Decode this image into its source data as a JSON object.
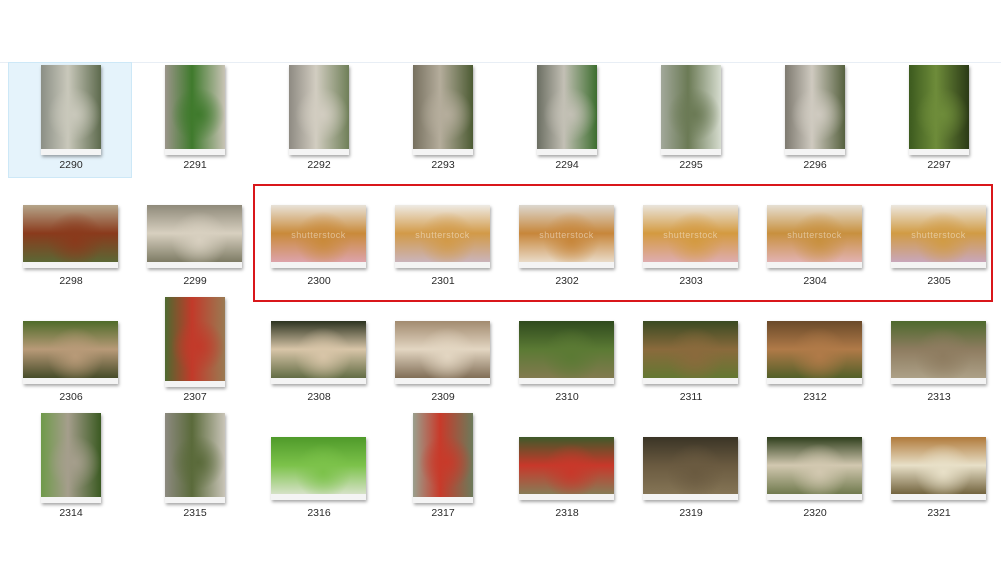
{
  "window": {
    "selected_item": "2290",
    "highlighted_items": [
      "2300",
      "2301",
      "2302",
      "2303",
      "2304",
      "2305"
    ],
    "highlight_color": "#d9171b",
    "watermark_text": "shutterstock"
  },
  "rows": [
    [
      {
        "label": "2290",
        "orient": "portrait",
        "palette": [
          "#8b8f85",
          "#c9c8bb",
          "#5d6a4d"
        ],
        "selected": true
      },
      {
        "label": "2291",
        "orient": "portrait",
        "palette": [
          "#9b958a",
          "#3f7a2c",
          "#c8c3b5"
        ]
      },
      {
        "label": "2292",
        "orient": "portrait",
        "palette": [
          "#8e8a82",
          "#d2cdc1",
          "#6f7f58"
        ]
      },
      {
        "label": "2293",
        "orient": "portrait",
        "palette": [
          "#76705f",
          "#b5ad9c",
          "#4c5b33"
        ]
      },
      {
        "label": "2294",
        "orient": "portrait",
        "palette": [
          "#6b6e62",
          "#c3c0b5",
          "#3d6e2f"
        ]
      },
      {
        "label": "2295",
        "orient": "portrait",
        "palette": [
          "#a2a89a",
          "#6b7a55",
          "#d6dccf"
        ]
      },
      {
        "label": "2296",
        "orient": "portrait",
        "palette": [
          "#7e7a70",
          "#cfcac0",
          "#56613f"
        ]
      },
      {
        "label": "2297",
        "orient": "portrait",
        "palette": [
          "#3c5a1e",
          "#6e8c3a",
          "#2b3a16"
        ]
      }
    ],
    [
      {
        "label": "2298",
        "orient": "landscape",
        "palette": [
          "#b5a58a",
          "#8a3a1c",
          "#52703a"
        ]
      },
      {
        "label": "2299",
        "orient": "landscape",
        "palette": [
          "#8f8a7a",
          "#d8d0c0",
          "#6b6a52"
        ]
      },
      {
        "label": "2300",
        "orient": "landscape",
        "palette": [
          "#e8e2d8",
          "#c98a3a",
          "#e1a8c2"
        ]
      },
      {
        "label": "2301",
        "orient": "landscape",
        "palette": [
          "#eeeae4",
          "#d29a48",
          "#c9b9d2"
        ]
      },
      {
        "label": "2302",
        "orient": "landscape",
        "palette": [
          "#dcd7cf",
          "#c7863a",
          "#f0ece5"
        ]
      },
      {
        "label": "2303",
        "orient": "landscape",
        "palette": [
          "#e9e4dc",
          "#d49a40",
          "#e0b0c6"
        ]
      },
      {
        "label": "2304",
        "orient": "landscape",
        "palette": [
          "#e6dfd3",
          "#c8903e",
          "#e7b9c9"
        ]
      },
      {
        "label": "2305",
        "orient": "landscape",
        "palette": [
          "#ece7df",
          "#d19b44",
          "#c7a9d3"
        ]
      }
    ],
    [
      {
        "label": "2306",
        "orient": "landscape",
        "palette": [
          "#4f6b2a",
          "#b89a78",
          "#2e3b18"
        ]
      },
      {
        "label": "2307",
        "orient": "portrait",
        "palette": [
          "#4e6a30",
          "#c23a2a",
          "#9a7a52"
        ]
      },
      {
        "label": "2308",
        "orient": "landscape",
        "palette": [
          "#2c3320",
          "#d8c5a8",
          "#4a5a30"
        ]
      },
      {
        "label": "2309",
        "orient": "landscape",
        "palette": [
          "#a28b70",
          "#e3d6c2",
          "#6c5840"
        ]
      },
      {
        "label": "2310",
        "orient": "landscape",
        "palette": [
          "#2f4a1e",
          "#5b7a34",
          "#8a7a55"
        ]
      },
      {
        "label": "2311",
        "orient": "landscape",
        "palette": [
          "#3a4a22",
          "#8a6a3c",
          "#5c7a30"
        ]
      },
      {
        "label": "2312",
        "orient": "landscape",
        "palette": [
          "#6a4a2a",
          "#b07a48",
          "#3f5a22"
        ]
      },
      {
        "label": "2313",
        "orient": "landscape",
        "palette": [
          "#4e6a2e",
          "#8e7c60",
          "#b3a88f"
        ]
      }
    ],
    [
      {
        "label": "2314",
        "orient": "portrait",
        "palette": [
          "#6f9a4a",
          "#a59e8c",
          "#3b5a22"
        ]
      },
      {
        "label": "2315",
        "orient": "portrait",
        "palette": [
          "#8d8a80",
          "#5a6a3a",
          "#c9c4b8"
        ]
      },
      {
        "label": "2316",
        "orient": "landscape",
        "palette": [
          "#4f9a2a",
          "#7cc24a",
          "#e8e8e0"
        ]
      },
      {
        "label": "2317",
        "orient": "portrait",
        "palette": [
          "#9aa08e",
          "#c83a2a",
          "#6c7a5a"
        ]
      },
      {
        "label": "2318",
        "orient": "landscape",
        "palette": [
          "#3e5a2a",
          "#c8382a",
          "#7a8a60"
        ]
      },
      {
        "label": "2319",
        "orient": "landscape",
        "palette": [
          "#3a3426",
          "#6a5a40",
          "#8a7a5a"
        ]
      },
      {
        "label": "2320",
        "orient": "landscape",
        "palette": [
          "#2e3e1c",
          "#d2c8b0",
          "#5c6a3a"
        ]
      },
      {
        "label": "2321",
        "orient": "landscape",
        "palette": [
          "#b07a3a",
          "#e8e0c8",
          "#5a4a22"
        ]
      }
    ]
  ]
}
